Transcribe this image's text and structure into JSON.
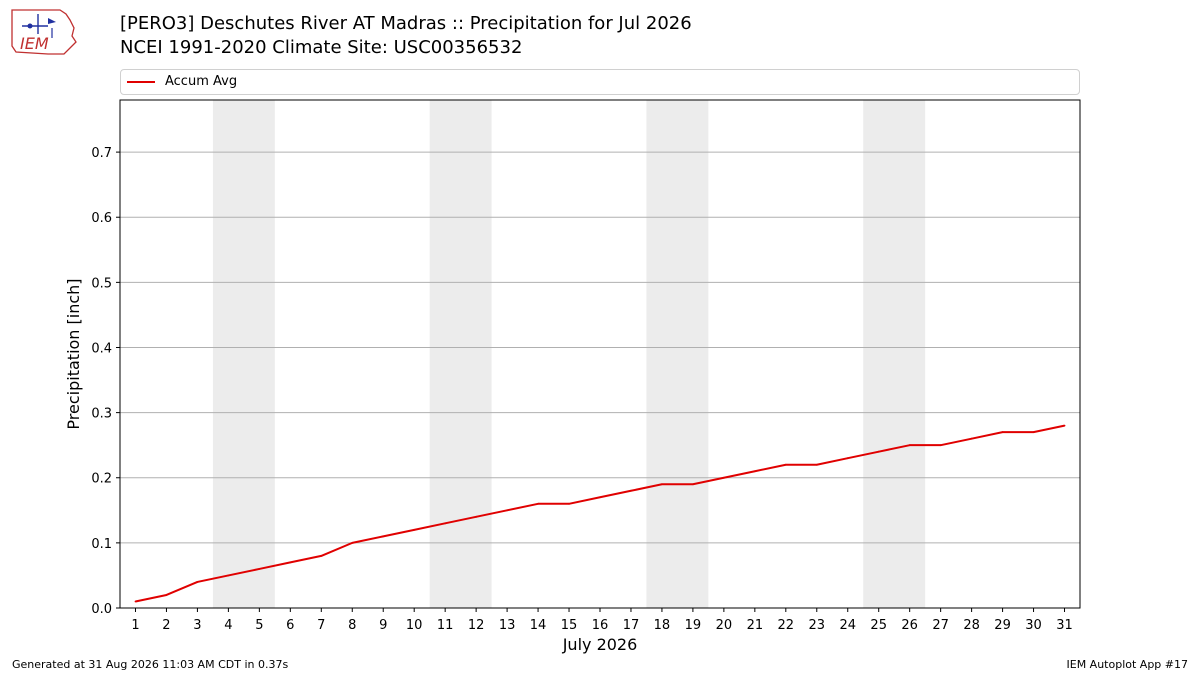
{
  "header": {
    "title_line1": "[PERO3] Deschutes River  AT Madras :: Precipitation for Jul 2026",
    "title_line2": "NCEI 1991-2020 Climate Site: USC00356532"
  },
  "logo": {
    "text": "IEM",
    "icon": "iem-iowa-logo"
  },
  "footer": {
    "generated": "Generated at 31 Aug 2026 11:03 AM CDT in 0.37s",
    "app": "IEM Autoplot App #17"
  },
  "colors": {
    "line": "#e00000",
    "weekend_band": "#ececec",
    "grid": "#b0b0b0"
  },
  "chart_data": {
    "type": "line",
    "xlabel": "July 2026",
    "ylabel": "Precipitation [inch]",
    "x": [
      1,
      2,
      3,
      4,
      5,
      6,
      7,
      8,
      9,
      10,
      11,
      12,
      13,
      14,
      15,
      16,
      17,
      18,
      19,
      20,
      21,
      22,
      23,
      24,
      25,
      26,
      27,
      28,
      29,
      30,
      31
    ],
    "series": [
      {
        "name": "Accum Avg",
        "values": [
          0.01,
          0.02,
          0.04,
          0.05,
          0.06,
          0.07,
          0.08,
          0.1,
          0.11,
          0.12,
          0.13,
          0.14,
          0.15,
          0.16,
          0.16,
          0.17,
          0.18,
          0.19,
          0.19,
          0.2,
          0.21,
          0.22,
          0.22,
          0.23,
          0.24,
          0.25,
          0.25,
          0.26,
          0.27,
          0.27,
          0.28
        ]
      }
    ],
    "xlim": [
      0.5,
      31.5
    ],
    "ylim": [
      0,
      0.78
    ],
    "yticks": [
      0.0,
      0.1,
      0.2,
      0.3,
      0.4,
      0.5,
      0.6,
      0.7
    ],
    "ytick_labels": [
      "0.0",
      "0.1",
      "0.2",
      "0.3",
      "0.4",
      "0.5",
      "0.6",
      "0.7"
    ],
    "weekend_bands": [
      [
        3.5,
        5.5
      ],
      [
        10.5,
        12.5
      ],
      [
        17.5,
        19.5
      ],
      [
        24.5,
        26.5
      ]
    ],
    "grid": "horizontal",
    "legend_position": "top"
  }
}
